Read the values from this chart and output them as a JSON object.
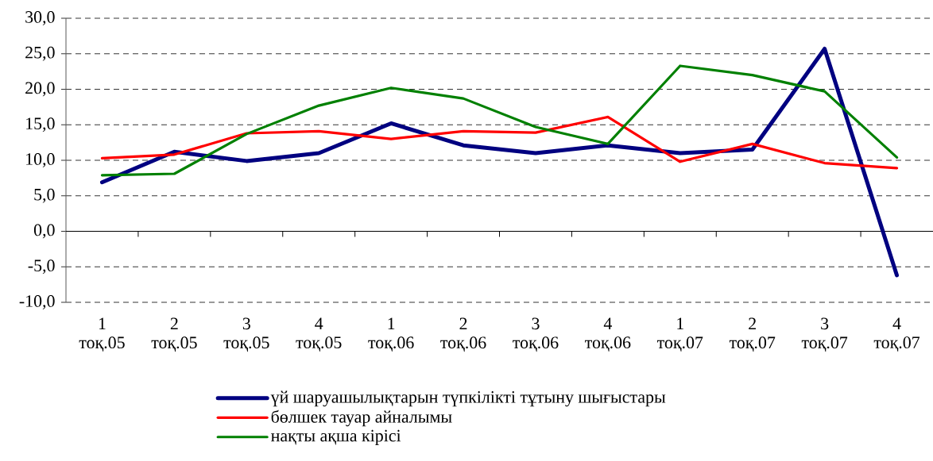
{
  "chart_data": {
    "type": "line",
    "categories": [
      "1 тоқ.05",
      "2 тоқ.05",
      "3 тоқ.05",
      "4 тоқ.05",
      "1 тоқ.06",
      "2 тоқ.06",
      "3 тоқ.06",
      "4 тоқ.06",
      "1 тоқ.07",
      "2 тоқ.07",
      "3 тоқ.07",
      "4 тоқ.07"
    ],
    "series": [
      {
        "name": "үй шаруашылықтарын түпкілікті тұтыну шығыстары",
        "color": "#000080",
        "values": [
          6.9,
          11.2,
          9.9,
          11.0,
          15.2,
          12.1,
          11.0,
          12.1,
          11.0,
          11.5,
          25.7,
          -6.2
        ]
      },
      {
        "name": "бөлшек тауар айналымы",
        "color": "#ff0000",
        "values": [
          10.3,
          10.8,
          13.8,
          14.1,
          13.0,
          14.1,
          13.9,
          16.1,
          9.8,
          12.3,
          9.6,
          8.9
        ]
      },
      {
        "name": "нақты ақша кірісі",
        "color": "#008000",
        "values": [
          7.9,
          8.1,
          13.7,
          17.7,
          20.2,
          18.7,
          14.7,
          12.3,
          23.3,
          22.0,
          19.7,
          10.4
        ]
      }
    ],
    "ylim": [
      -10,
      30
    ],
    "yticks": [
      {
        "value": -10,
        "label": "-10,0"
      },
      {
        "value": -5,
        "label": "-5,0"
      },
      {
        "value": 0,
        "label": "0,0"
      },
      {
        "value": 5,
        "label": "5,0"
      },
      {
        "value": 10,
        "label": "10,0"
      },
      {
        "value": 15,
        "label": "15,0"
      },
      {
        "value": 20,
        "label": "20,0"
      },
      {
        "value": 25,
        "label": "25,0"
      },
      {
        "value": 30,
        "label": "30,0"
      }
    ],
    "grid": "y",
    "legend": "bottom"
  }
}
